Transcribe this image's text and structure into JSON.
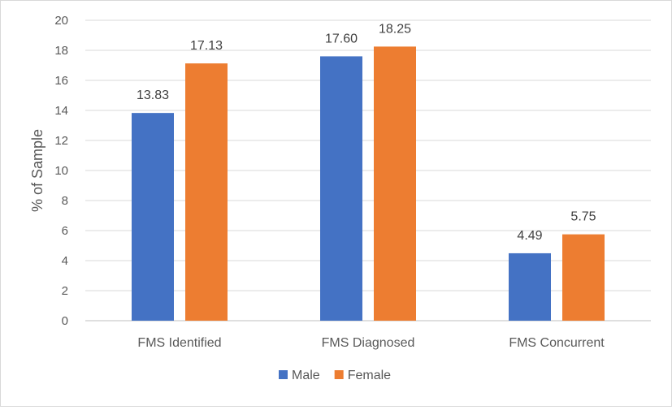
{
  "chart_data": {
    "type": "bar",
    "title": "",
    "xlabel": "",
    "ylabel": "% of Sample",
    "ylim": [
      0,
      20
    ],
    "y_ticks": [
      0,
      2,
      4,
      6,
      8,
      10,
      12,
      14,
      16,
      18,
      20
    ],
    "y_tick_labels": [
      "0",
      "2",
      "4",
      "6",
      "8",
      "10",
      "12",
      "14",
      "16",
      "18",
      "20"
    ],
    "grid": true,
    "legend_position": "bottom",
    "categories": [
      "FMS Identified",
      "FMS Diagnosed",
      "FMS Concurrent"
    ],
    "series": [
      {
        "name": "Male",
        "color": "#4472c4",
        "values": [
          13.83,
          17.6,
          4.49
        ],
        "labels": [
          "13.83",
          "17.60",
          "4.49"
        ]
      },
      {
        "name": "Female",
        "color": "#ed7d31",
        "values": [
          17.13,
          18.25,
          5.75
        ],
        "labels": [
          "17.13",
          "18.25",
          "5.75"
        ]
      }
    ]
  }
}
